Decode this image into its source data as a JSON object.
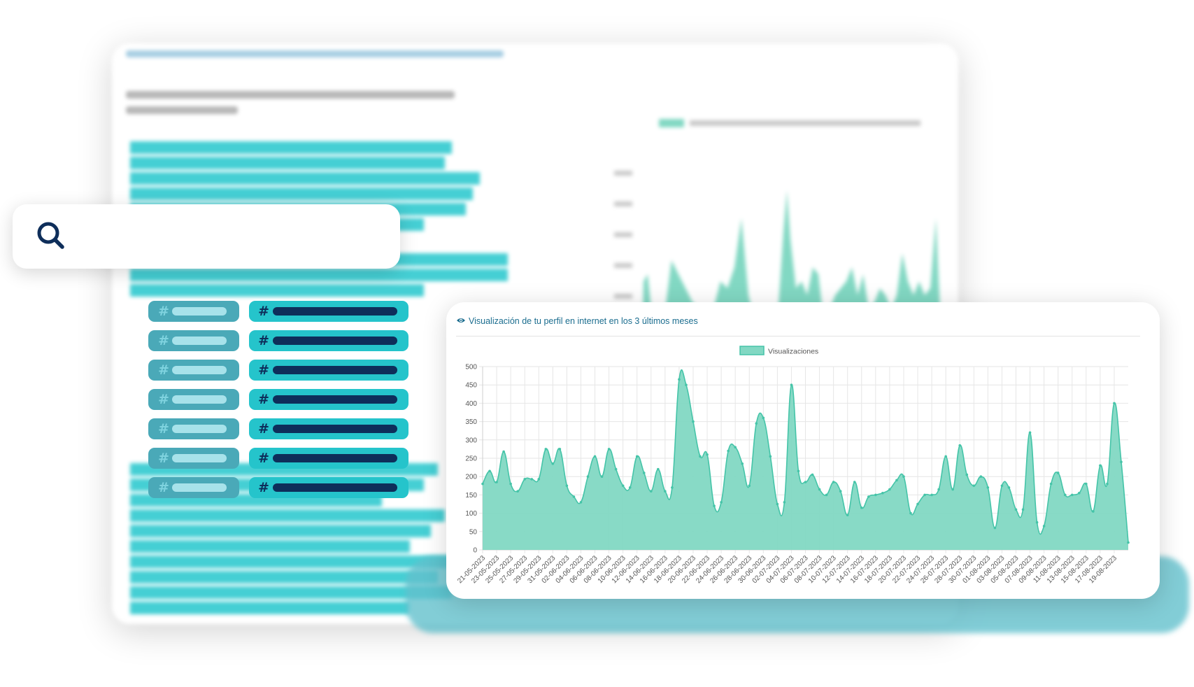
{
  "colors": {
    "accent": "#45c4a8",
    "accent_fill": "#82d8c3",
    "title_blue": "#1b6d8f",
    "teal": "#25c4cb",
    "navy": "#0e2e5a"
  },
  "search": {
    "icon": "search-icon"
  },
  "tags": {
    "rows": 7,
    "hash_symbol": "#"
  },
  "card": {
    "icon": "eye-icon",
    "title": "Visualización de tu perfil en internet en los 3 últimos meses"
  },
  "chart_data": {
    "type": "area",
    "legend": [
      "Visualizaciones"
    ],
    "legend_position": "top-center",
    "ylim": [
      0,
      500
    ],
    "yticks": [
      0,
      50,
      100,
      150,
      200,
      250,
      300,
      350,
      400,
      450,
      500
    ],
    "grid": true,
    "x_tick_labels": [
      "21-05-2023",
      "23-05-2023",
      "25-05-2023",
      "27-05-2023",
      "29-05-2023",
      "31-05-2023",
      "02-06-2023",
      "04-06-2023",
      "06-06-2023",
      "08-06-2023",
      "10-06-2023",
      "12-06-2023",
      "14-06-2023",
      "16-06-2023",
      "18-06-2023",
      "20-06-2023",
      "22-06-2023",
      "24-06-2023",
      "26-06-2023",
      "28-06-2023",
      "30-06-2023",
      "02-07-2023",
      "04-07-2023",
      "06-07-2023",
      "08-07-2023",
      "10-07-2023",
      "12-07-2023",
      "14-07-2023",
      "16-07-2023",
      "18-07-2023",
      "20-07-2023",
      "22-07-2023",
      "24-07-2023",
      "26-07-2023",
      "28-07-2023",
      "30-07-2023",
      "01-08-2023",
      "03-08-2023",
      "05-08-2023",
      "07-08-2023",
      "09-08-2023",
      "11-08-2023",
      "13-08-2023",
      "15-08-2023",
      "17-08-2023",
      "19-08-2023"
    ],
    "series": [
      {
        "name": "Visualizaciones",
        "values": [
          180,
          215,
          185,
          268,
          180,
          160,
          193,
          193,
          193,
          275,
          235,
          275,
          175,
          145,
          130,
          200,
          255,
          200,
          275,
          220,
          175,
          170,
          255,
          210,
          160,
          220,
          160,
          170,
          465,
          450,
          350,
          255,
          260,
          120,
          130,
          270,
          280,
          235,
          175,
          345,
          360,
          255,
          125,
          130,
          450,
          215,
          185,
          205,
          165,
          150,
          185,
          160,
          95,
          185,
          115,
          145,
          150,
          155,
          165,
          190,
          200,
          100,
          125,
          150,
          150,
          165,
          255,
          165,
          285,
          205,
          175,
          200,
          170,
          60,
          175,
          170,
          110,
          110,
          320,
          75,
          65,
          180,
          210,
          150,
          150,
          155,
          180,
          105,
          230,
          180,
          400,
          240,
          20
        ]
      }
    ]
  }
}
